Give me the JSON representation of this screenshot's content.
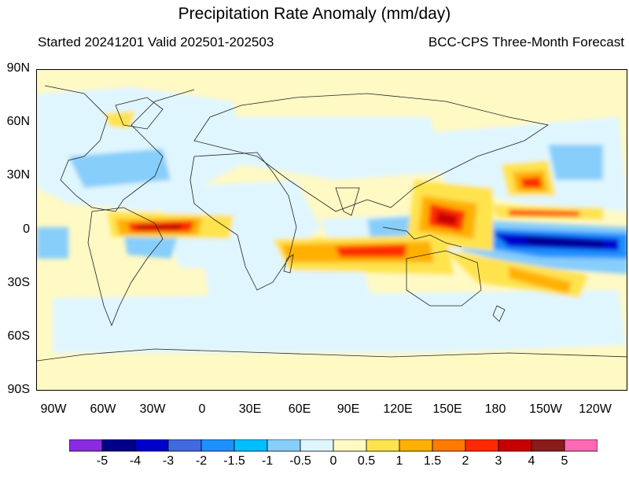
{
  "header": {
    "title": "Precipitation Rate Anomaly (mm/day)",
    "subtitle_left": "Started 20241201  Valid 202501-202503",
    "subtitle_right": "BCC-CPS Three-Month Forecast"
  },
  "axes": {
    "lat_ticks": [
      "90N",
      "60N",
      "30N",
      "0",
      "30S",
      "60S",
      "90S"
    ],
    "lon_ticks": [
      "90W",
      "60W",
      "30W",
      "0",
      "30E",
      "60E",
      "90E",
      "120E",
      "150E",
      "180",
      "150W",
      "120W"
    ]
  },
  "colorbar": {
    "labels": [
      "-5",
      "-4",
      "-3",
      "-2",
      "-1.5",
      "-1",
      "-0.5",
      "0",
      "0.5",
      "1",
      "1.5",
      "2",
      "3",
      "4",
      "5"
    ],
    "colors": [
      "#8a2be2",
      "#00008b",
      "#0000cd",
      "#4169e1",
      "#1e90ff",
      "#00bfff",
      "#87cefa",
      "#e0f6ff",
      "#fff9c4",
      "#ffe34d",
      "#ffb000",
      "#ff7a00",
      "#ff2a00",
      "#c80000",
      "#8b1a1a",
      "#ff69b4"
    ]
  }
}
